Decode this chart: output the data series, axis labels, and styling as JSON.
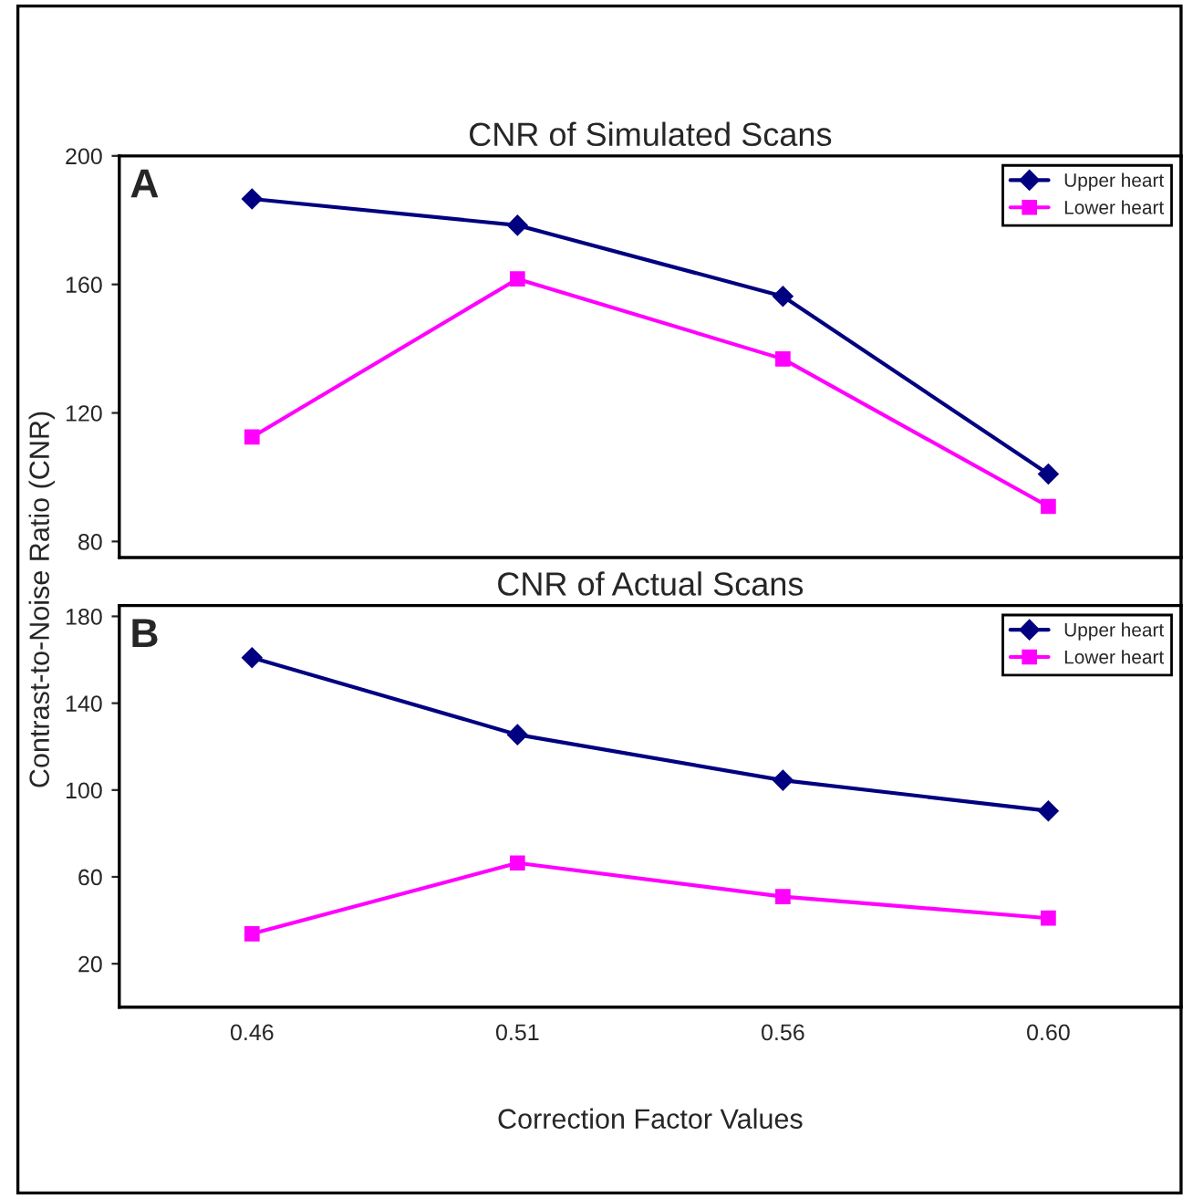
{
  "chart_data": [
    {
      "type": "line",
      "title": "CNR of Simulated Scans",
      "ylabel": "Contrast-to-Noise Ratio (CNR)",
      "categories": [
        "0.46",
        "0.51",
        "0.56",
        "0.60"
      ],
      "tick_labels": "y",
      "annotations": [
        "A"
      ],
      "series": [
        {
          "name": "Upper heart",
          "color": "#000080",
          "marker": "diamond",
          "values": [
            186.6,
            178.4,
            156.3,
            101
          ]
        },
        {
          "name": "Lower heart",
          "color": "#ff00ff",
          "marker": "square",
          "values": [
            112.5,
            161.7,
            136.8,
            90.9
          ]
        }
      ],
      "ylim": [
        75,
        200
      ],
      "yticks": [
        80,
        120,
        160,
        200
      ],
      "grid": false,
      "legend": "top right"
    },
    {
      "type": "line",
      "title": "CNR of Actual Scans",
      "xlabel": "Correction Factor Values",
      "categories": [
        "0.46",
        "0.51",
        "0.56",
        "0.60"
      ],
      "annotations": [
        "B"
      ],
      "series": [
        {
          "name": "Upper heart",
          "color": "#000080",
          "marker": "diamond",
          "values": [
            161,
            125.5,
            104.5,
            90.4
          ]
        },
        {
          "name": "Lower heart",
          "color": "#ff00ff",
          "marker": "square",
          "values": [
            33.8,
            66.4,
            50.9,
            41
          ]
        }
      ],
      "ylim": [
        0,
        185
      ],
      "yticks": [
        20,
        60,
        100,
        140,
        180
      ],
      "grid": false,
      "legend": "top right"
    }
  ]
}
